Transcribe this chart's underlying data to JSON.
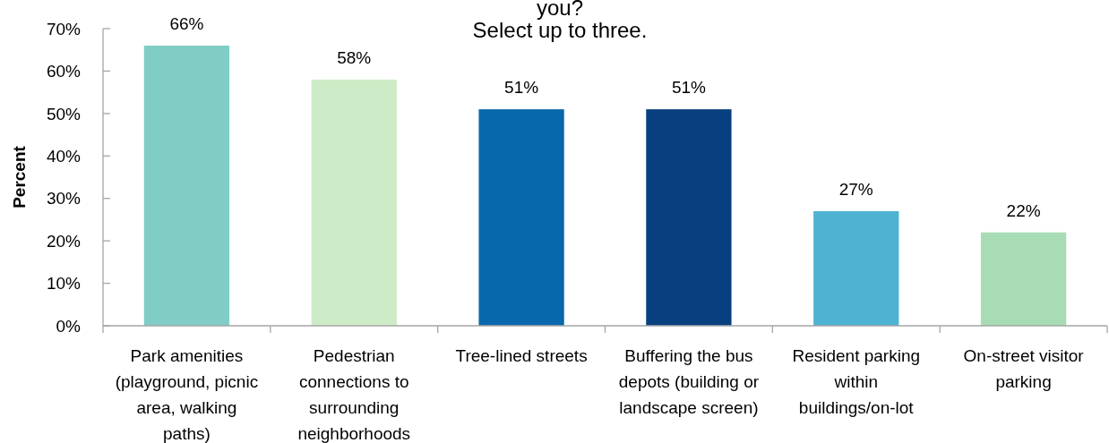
{
  "chart_data": {
    "type": "bar",
    "title": "you?",
    "subtitle": "Select up to three.",
    "ylabel": "Percent",
    "categories": [
      "Park amenities (playground, picnic area, walking paths)",
      "Pedestrian connections to surrounding neighborhoods",
      "Tree-lined streets",
      "Buffering the bus depots (building or landscape screen)",
      "Resident parking within buildings/on-lot",
      "On-street visitor parking"
    ],
    "values": [
      66,
      58,
      51,
      51,
      27,
      22
    ],
    "colors": [
      "#7fcdc5",
      "#cdebc7",
      "#0868ac",
      "#08407f",
      "#4eb3d3",
      "#a8dcb5"
    ],
    "value_labels": [
      "66%",
      "58%",
      "51%",
      "51%",
      "27%",
      "22%"
    ],
    "ylim": [
      0,
      70
    ],
    "yticks": [
      {
        "value": 0,
        "label": "0%"
      },
      {
        "value": 10,
        "label": "10%"
      },
      {
        "value": 20,
        "label": "20%"
      },
      {
        "value": 30,
        "label": "30%"
      },
      {
        "value": 40,
        "label": "40%"
      },
      {
        "value": 50,
        "label": "50%"
      },
      {
        "value": 60,
        "label": "60%"
      },
      {
        "value": 70,
        "label": "70%"
      }
    ]
  }
}
